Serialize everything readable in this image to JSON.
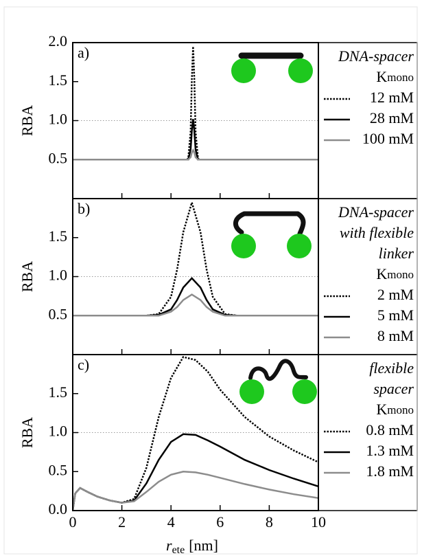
{
  "chart_data": [
    {
      "type": "line",
      "panel_label": "a)",
      "ylabel": "RBA",
      "legend_title": [
        "DNA-spacer"
      ],
      "legend_k": "K",
      "legend_k_sub": "mono",
      "xlim": [
        0,
        10
      ],
      "ylim": [
        0,
        2
      ],
      "yticks": [
        0.5,
        {
          "value": 1,
          "label": "1.0"
        },
        1.5,
        {
          "value": 2,
          "label": "2.0"
        }
      ],
      "reference_line": 1,
      "x": [
        0,
        4.6,
        4.7,
        4.8,
        4.85,
        4.9,
        4.95,
        5.0,
        5.1,
        5.2,
        10
      ],
      "series": [
        {
          "name": "12 mM",
          "color": "#000000",
          "style": "dotted",
          "values": [
            0.5,
            0.5,
            0.51,
            0.86,
            1.53,
            1.95,
            1.53,
            0.86,
            0.51,
            0.5,
            0.5
          ]
        },
        {
          "name": "28 mM",
          "color": "#000000",
          "style": "solid",
          "values": [
            0.5,
            0.5,
            0.5,
            0.63,
            0.87,
            1.02,
            0.87,
            0.63,
            0.5,
            0.5,
            0.5
          ]
        },
        {
          "name": "100 mM",
          "color": "#8c8c8c",
          "style": "solid",
          "values": [
            0.5,
            0.5,
            0.5,
            0.53,
            0.59,
            0.62,
            0.59,
            0.53,
            0.5,
            0.5,
            0.5
          ]
        }
      ]
    },
    {
      "type": "line",
      "panel_label": "b)",
      "ylabel": "RBA",
      "legend_title": [
        "DNA-spacer",
        "with flexible",
        "linker"
      ],
      "legend_k": "K",
      "legend_k_sub": "mono",
      "xlim": [
        0,
        10
      ],
      "ylim": [
        0,
        2
      ],
      "yticks": [
        0.5,
        {
          "value": 1,
          "label": "1.0"
        },
        1.5
      ],
      "reference_line": 1,
      "x": [
        0,
        3,
        3.5,
        4,
        4.25,
        4.5,
        4.85,
        5.2,
        5.45,
        5.7,
        6.2,
        6.7,
        10
      ],
      "series": [
        {
          "name": "2 mM",
          "color": "#000000",
          "style": "dotted",
          "values": [
            0.5,
            0.5,
            0.52,
            0.74,
            1.09,
            1.57,
            1.95,
            1.57,
            1.09,
            0.74,
            0.52,
            0.5,
            0.5
          ]
        },
        {
          "name": "5 mM",
          "color": "#000000",
          "style": "solid",
          "values": [
            0.5,
            0.5,
            0.51,
            0.58,
            0.7,
            0.86,
            0.98,
            0.86,
            0.7,
            0.58,
            0.51,
            0.5,
            0.5
          ]
        },
        {
          "name": "8 mM",
          "color": "#8c8c8c",
          "style": "solid",
          "values": [
            0.5,
            0.5,
            0.5,
            0.55,
            0.61,
            0.7,
            0.77,
            0.7,
            0.61,
            0.55,
            0.5,
            0.5,
            0.5
          ]
        }
      ]
    },
    {
      "type": "line",
      "panel_label": "c)",
      "ylabel": "RBA",
      "legend_title": [
        "flexible",
        "spacer"
      ],
      "legend_k": "K",
      "legend_k_sub": "mono",
      "xlabel_var": "r",
      "xlabel_sub": "ete",
      "xlabel_unit": "[nm]",
      "xlim": [
        0,
        10
      ],
      "xticks": [
        0,
        2,
        4,
        6,
        8,
        10
      ],
      "ylim": [
        0,
        2
      ],
      "yticks": [
        {
          "value": 0,
          "label": "0.0"
        },
        0.5,
        {
          "value": 1,
          "label": "1.0"
        },
        1.5
      ],
      "reference_line": 1,
      "x": [
        0,
        0.1,
        0.3,
        0.6,
        1,
        1.5,
        2,
        2.5,
        3,
        3.5,
        4,
        4.5,
        5,
        5.5,
        6,
        7,
        8,
        9,
        10
      ],
      "series": [
        {
          "name": "0.8 mM",
          "color": "#000000",
          "style": "dotted",
          "values": [
            0,
            0.22,
            0.29,
            0.24,
            0.18,
            0.13,
            0.1,
            0.15,
            0.55,
            1.2,
            1.7,
            1.97,
            1.93,
            1.78,
            1.55,
            1.2,
            0.95,
            0.77,
            0.62
          ]
        },
        {
          "name": "1.3 mM",
          "color": "#000000",
          "style": "solid",
          "values": [
            0,
            0.22,
            0.29,
            0.24,
            0.18,
            0.13,
            0.1,
            0.13,
            0.35,
            0.65,
            0.88,
            0.98,
            0.97,
            0.9,
            0.82,
            0.65,
            0.52,
            0.41,
            0.31
          ]
        },
        {
          "name": "1.8 mM",
          "color": "#8c8c8c",
          "style": "solid",
          "values": [
            0,
            0.22,
            0.29,
            0.24,
            0.18,
            0.13,
            0.1,
            0.12,
            0.24,
            0.37,
            0.46,
            0.5,
            0.49,
            0.46,
            0.42,
            0.34,
            0.27,
            0.21,
            0.16
          ]
        }
      ]
    }
  ]
}
